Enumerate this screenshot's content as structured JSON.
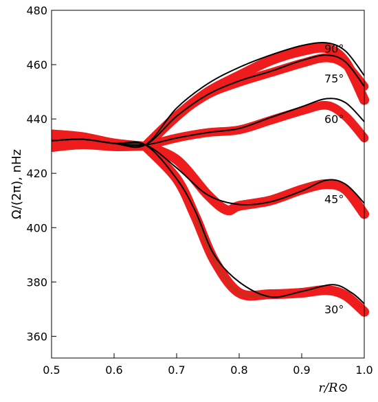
{
  "chart_data": {
    "type": "line",
    "xlabel": "r/R⊙",
    "ylabel": "Ω/(2π), nHz",
    "xlim": [
      0.5,
      1.0
    ],
    "ylim": [
      352,
      480
    ],
    "xticks": [
      "0.5",
      "0.6",
      "0.7",
      "0.8",
      "0.9",
      "1.0"
    ],
    "yticks": [
      "360",
      "380",
      "400",
      "420",
      "440",
      "460",
      "480"
    ],
    "grid": false,
    "colors": {
      "band": "#ee1c1c",
      "band_dark": "#8a4a1a",
      "model": "#000000"
    },
    "series": [
      {
        "name": "90°",
        "model": [
          [
            0.5,
            432
          ],
          [
            0.55,
            432.5
          ],
          [
            0.6,
            431
          ],
          [
            0.65,
            430.5
          ],
          [
            0.7,
            444
          ],
          [
            0.75,
            453
          ],
          [
            0.8,
            459
          ],
          [
            0.85,
            463.5
          ],
          [
            0.9,
            467
          ],
          [
            0.94,
            468
          ],
          [
            0.97,
            465
          ],
          [
            1.0,
            456
          ]
        ],
        "band": [
          [
            0.65,
            430
          ],
          [
            0.7,
            441
          ],
          [
            0.75,
            450
          ],
          [
            0.8,
            456
          ],
          [
            0.85,
            461.5
          ],
          [
            0.9,
            465
          ],
          [
            0.94,
            466
          ],
          [
            0.97,
            461
          ],
          [
            1.0,
            447
          ]
        ],
        "band_width": 1.8
      },
      {
        "name": "75°",
        "model": [
          [
            0.5,
            432
          ],
          [
            0.55,
            432.5
          ],
          [
            0.6,
            431
          ],
          [
            0.65,
            430.5
          ],
          [
            0.7,
            441
          ],
          [
            0.75,
            449
          ],
          [
            0.8,
            454
          ],
          [
            0.85,
            457.5
          ],
          [
            0.9,
            461.5
          ],
          [
            0.94,
            463.5
          ],
          [
            0.97,
            461
          ],
          [
            1.0,
            452
          ]
        ],
        "band": [
          [
            0.65,
            430
          ],
          [
            0.7,
            441
          ],
          [
            0.75,
            449
          ],
          [
            0.8,
            453.5
          ],
          [
            0.85,
            457
          ],
          [
            0.9,
            460.5
          ],
          [
            0.94,
            462.5
          ],
          [
            0.97,
            460
          ],
          [
            1.0,
            452
          ]
        ],
        "band_width": 1.6
      },
      {
        "name": "60°",
        "model": [
          [
            0.5,
            432
          ],
          [
            0.55,
            432.5
          ],
          [
            0.6,
            431
          ],
          [
            0.65,
            430.5
          ],
          [
            0.7,
            433
          ],
          [
            0.75,
            435
          ],
          [
            0.8,
            436.5
          ],
          [
            0.85,
            440.5
          ],
          [
            0.9,
            444.5
          ],
          [
            0.94,
            447.5
          ],
          [
            0.97,
            446
          ],
          [
            1.0,
            439
          ]
        ],
        "band": [
          [
            0.65,
            430
          ],
          [
            0.7,
            433
          ],
          [
            0.75,
            435
          ],
          [
            0.8,
            436
          ],
          [
            0.85,
            439.5
          ],
          [
            0.9,
            443
          ],
          [
            0.94,
            445
          ],
          [
            0.97,
            441
          ],
          [
            1.0,
            433
          ]
        ],
        "band_width": 1.6
      },
      {
        "name": "45°",
        "model": [
          [
            0.5,
            432
          ],
          [
            0.55,
            432.5
          ],
          [
            0.6,
            431
          ],
          [
            0.65,
            430.5
          ],
          [
            0.7,
            422
          ],
          [
            0.75,
            412
          ],
          [
            0.8,
            408.5
          ],
          [
            0.85,
            409.5
          ],
          [
            0.9,
            413.5
          ],
          [
            0.94,
            417.5
          ],
          [
            0.97,
            416
          ],
          [
            1.0,
            409
          ]
        ],
        "band": [
          [
            0.65,
            430
          ],
          [
            0.7,
            425
          ],
          [
            0.75,
            412
          ],
          [
            0.78,
            406.5
          ],
          [
            0.8,
            408
          ],
          [
            0.85,
            410
          ],
          [
            0.9,
            414
          ],
          [
            0.94,
            416
          ],
          [
            0.97,
            414
          ],
          [
            1.0,
            405
          ]
        ],
        "band_width": 1.8
      },
      {
        "name": "30°",
        "model": [
          [
            0.5,
            432
          ],
          [
            0.55,
            432.5
          ],
          [
            0.6,
            431
          ],
          [
            0.65,
            430.5
          ],
          [
            0.7,
            418
          ],
          [
            0.73,
            406
          ],
          [
            0.76,
            390
          ],
          [
            0.8,
            380
          ],
          [
            0.85,
            374.5
          ],
          [
            0.9,
            376.5
          ],
          [
            0.95,
            379
          ],
          [
            0.98,
            376
          ],
          [
            1.0,
            372
          ]
        ],
        "band": [
          [
            0.65,
            430
          ],
          [
            0.7,
            418
          ],
          [
            0.73,
            404
          ],
          [
            0.76,
            388
          ],
          [
            0.8,
            376
          ],
          [
            0.85,
            375.5
          ],
          [
            0.9,
            376
          ],
          [
            0.94,
            377
          ],
          [
            0.97,
            375
          ],
          [
            1.0,
            369
          ]
        ],
        "band_width": 1.8
      }
    ],
    "common_band": {
      "points": [
        [
          0.5,
          432
        ],
        [
          0.55,
          432
        ],
        [
          0.6,
          430.5
        ],
        [
          0.65,
          430
        ]
      ],
      "half_widths": [
        4.0,
        3.0,
        2.2,
        1.5
      ]
    }
  }
}
